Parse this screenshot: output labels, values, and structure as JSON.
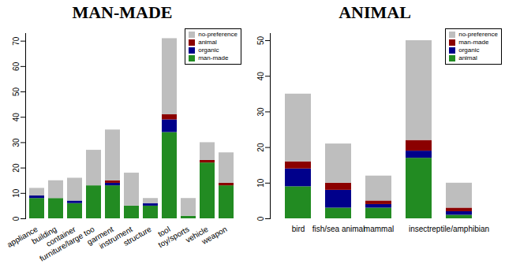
{
  "chart_data": [
    {
      "type": "bar",
      "title": "MAN-MADE",
      "stacked": true,
      "legend": "topright",
      "categories": [
        "appliance",
        "building",
        "container",
        "furniture/large too",
        "garment",
        "instrument",
        "structure",
        "tool",
        "toy/sports",
        "vehicle",
        "weapon"
      ],
      "series": [
        {
          "name": "man-made",
          "color": "#228b22",
          "values": [
            8,
            8,
            6,
            13,
            13,
            5,
            5,
            34,
            1,
            22,
            13
          ]
        },
        {
          "name": "organic",
          "color": "#00008b",
          "values": [
            1,
            0,
            1,
            0,
            1,
            0,
            1,
            5,
            0,
            0,
            0
          ]
        },
        {
          "name": "animal",
          "color": "#8b0000",
          "values": [
            0,
            0,
            0,
            0,
            1,
            0,
            0,
            2,
            0,
            1,
            1
          ]
        },
        {
          "name": "no-preference",
          "color": "#bebebe",
          "values": [
            3,
            7,
            9,
            14,
            20,
            13,
            2,
            30,
            7,
            7,
            12
          ]
        }
      ],
      "ylim": [
        0,
        73
      ],
      "yticks": [
        0,
        10,
        20,
        30,
        40,
        50,
        60,
        70
      ]
    },
    {
      "type": "bar",
      "title": "ANIMAL",
      "stacked": true,
      "legend": "topright",
      "categories": [
        "bird",
        "fish/sea animal",
        "mammal",
        "insect",
        "reptile/amphibian"
      ],
      "series": [
        {
          "name": "animal",
          "color": "#228b22",
          "values": [
            9,
            3,
            3,
            17,
            1
          ]
        },
        {
          "name": "organic",
          "color": "#00008b",
          "values": [
            5,
            5,
            1,
            2,
            1
          ]
        },
        {
          "name": "man-made",
          "color": "#8b0000",
          "values": [
            2,
            2,
            1,
            3,
            1
          ]
        },
        {
          "name": "no-preference",
          "color": "#bebebe",
          "values": [
            19,
            11,
            7,
            28,
            7
          ]
        }
      ],
      "ylim": [
        0,
        52
      ],
      "yticks": [
        0,
        10,
        20,
        30,
        40,
        50
      ]
    }
  ]
}
